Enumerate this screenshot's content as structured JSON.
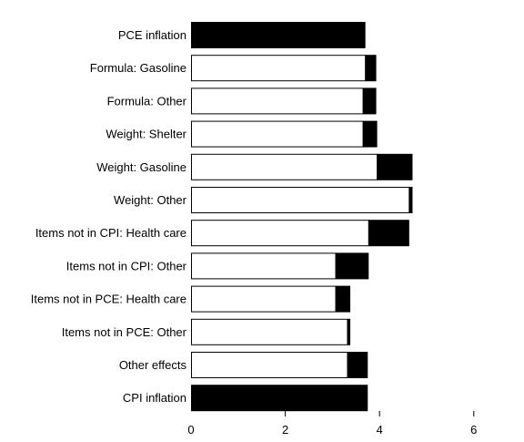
{
  "chart_data": {
    "type": "bar",
    "subtype": "waterfall",
    "title": "",
    "xlabel": "",
    "ylabel": "",
    "xlim": [
      0,
      6
    ],
    "x_ticks": [
      0,
      2,
      4,
      6
    ],
    "x_tick_labels": [
      "0",
      "2",
      "4",
      "6"
    ],
    "grid": false,
    "legend": "none",
    "categories": [
      "PCE inflation",
      "Formula: Gasoline",
      "Formula: Other",
      "Weight: Shelter",
      "Weight: Gasoline",
      "Weight: Other",
      "Items not in CPI: Health care",
      "Items not in CPI: Other",
      "Items not in PCE: Health care",
      "Items not in PCE: Other",
      "Other effects",
      "CPI inflation"
    ],
    "bars": [
      {
        "label": "PCE inflation",
        "kind": "total",
        "value": 3.7
      },
      {
        "label": "Formula: Gasoline",
        "kind": "step",
        "start": 3.7,
        "end": 3.93
      },
      {
        "label": "Formula: Other",
        "kind": "step",
        "start": 3.65,
        "end": 3.93
      },
      {
        "label": "Weight: Shelter",
        "kind": "step",
        "start": 3.65,
        "end": 3.95
      },
      {
        "label": "Weight: Gasoline",
        "kind": "step",
        "start": 3.95,
        "end": 4.7
      },
      {
        "label": "Weight: Other",
        "kind": "step",
        "start": 4.63,
        "end": 4.7
      },
      {
        "label": "Items not in CPI: Health care",
        "kind": "step",
        "start": 3.77,
        "end": 4.63
      },
      {
        "label": "Items not in CPI: Other",
        "kind": "step",
        "start": 3.07,
        "end": 3.77
      },
      {
        "label": "Items not in PCE: Health care",
        "kind": "step",
        "start": 3.07,
        "end": 3.38
      },
      {
        "label": "Items not in PCE: Other",
        "kind": "step",
        "start": 3.32,
        "end": 3.38
      },
      {
        "label": "Other effects",
        "kind": "step",
        "start": 3.32,
        "end": 3.75
      },
      {
        "label": "CPI inflation",
        "kind": "total",
        "value": 3.75
      }
    ]
  },
  "colors": {
    "bar_fill": "#000000",
    "bar_outline": "#000000",
    "placeholder_fill": "#ffffff",
    "background": "#ffffff"
  }
}
